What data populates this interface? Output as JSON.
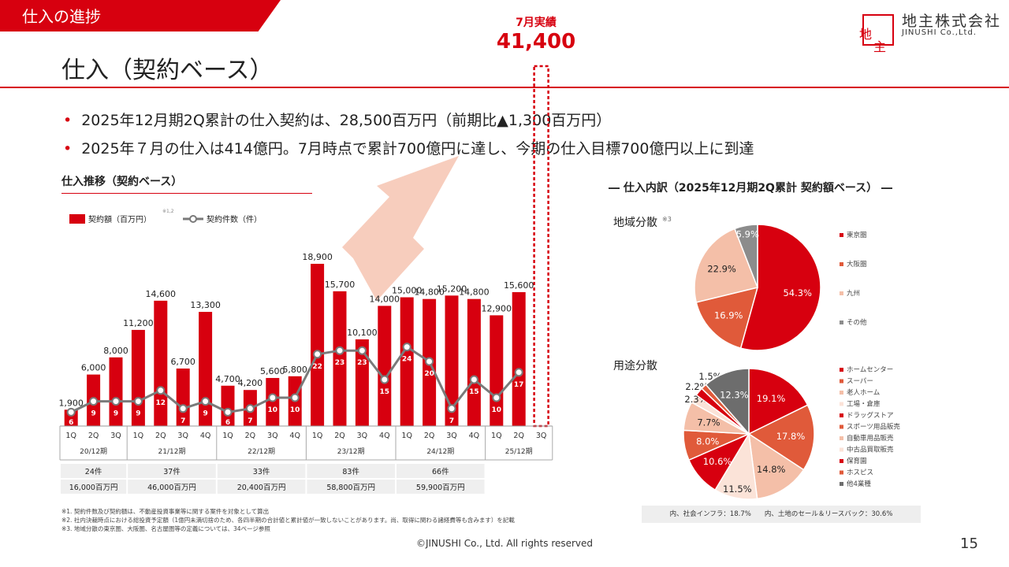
{
  "header": {
    "section": "仕入の進捗",
    "title": "仕入（契約ベース）",
    "logo_chars": [
      "地",
      "主"
    ],
    "company_name": "地主株式会社",
    "company_sub": "JINUSHI Co.,Ltd."
  },
  "highlight": {
    "label": "7月実績",
    "value": "41,400"
  },
  "bullets": [
    "2025年12月期2Q累計の仕入契約は、28,500百万円（前期比▲1,300百万円）",
    "2025年７月の仕入は414億円。7月時点で累計700億円に達し、今期の仕入目標700億円以上に到達"
  ],
  "left_chart_title": "仕入推移（契約ベース）",
  "right_title": "― 仕入内訳（2025年12月期2Q累計 契約額ベース） ―",
  "chart_data": [
    {
      "type": "bar",
      "legend": {
        "bar": "契約額（百万円）",
        "bar_note": "※1,2",
        "line": "契約件数（件）"
      },
      "categories": [
        "1Q",
        "2Q",
        "3Q",
        "1Q",
        "2Q",
        "3Q",
        "4Q",
        "1Q",
        "2Q",
        "3Q",
        "4Q",
        "1Q",
        "2Q",
        "3Q",
        "4Q",
        "1Q",
        "2Q",
        "3Q",
        "4Q",
        "1Q",
        "2Q",
        "3Q"
      ],
      "periods": [
        {
          "label": "20/12期",
          "count": 3
        },
        {
          "label": "21/12期",
          "count": 4
        },
        {
          "label": "22/12期",
          "count": 4
        },
        {
          "label": "23/12期",
          "count": 4
        },
        {
          "label": "24/12期",
          "count": 4
        },
        {
          "label": "25/12期",
          "count": 3
        }
      ],
      "series": [
        {
          "name": "契約額（百万円）",
          "type": "bar",
          "values": [
            1900,
            6000,
            8000,
            11200,
            14600,
            6700,
            13300,
            4700,
            4200,
            5600,
            5800,
            18900,
            15700,
            10100,
            14000,
            15000,
            14800,
            15200,
            14800,
            12900,
            15600,
            null
          ],
          "labels": [
            "1,900",
            "6,000",
            "8,000",
            "11,200",
            "14,600",
            "6,700",
            "13,300",
            "4,700",
            "4,200",
            "5,600",
            "5,800",
            "18,900",
            "15,700",
            "10,100",
            "14,000",
            "15,000",
            "14,800",
            "15,200",
            "14,800",
            "12,900",
            "15,600",
            ""
          ]
        },
        {
          "name": "契約件数（件）",
          "type": "line",
          "values": [
            6,
            9,
            9,
            9,
            12,
            7,
            9,
            6,
            7,
            10,
            10,
            22,
            23,
            23,
            15,
            24,
            20,
            7,
            15,
            10,
            17,
            null
          ]
        }
      ],
      "ylim": [
        0,
        20000
      ],
      "projection": {
        "category_index": 21,
        "value": 41400
      },
      "table": {
        "row1": [
          {
            "text": "24件",
            "span": 3
          },
          {
            "text": "37件",
            "span": 4
          },
          {
            "text": "33件",
            "span": 4
          },
          {
            "text": "83件",
            "span": 4
          },
          {
            "text": "66件",
            "span": 4
          }
        ],
        "row2": [
          {
            "text": "16,000百万円",
            "span": 3
          },
          {
            "text": "46,000百万円",
            "span": 4
          },
          {
            "text": "20,400百万円",
            "span": 4
          },
          {
            "text": "58,800百万円",
            "span": 4
          },
          {
            "text": "59,900百万円",
            "span": 4
          }
        ]
      }
    },
    {
      "type": "pie",
      "title": "地域分散",
      "title_note": "※3",
      "slices": [
        {
          "label": "東京圏",
          "value": 54.3,
          "display": "54.3%",
          "color": "#d7000f"
        },
        {
          "label": "大阪圏",
          "value": 16.9,
          "display": "16.9%",
          "color": "#e05a3a"
        },
        {
          "label": "九州",
          "value": 22.9,
          "display": "22.9%",
          "color": "#f4bfa8"
        },
        {
          "label": "その他",
          "value": 5.9,
          "display": "5.9%",
          "color": "#8c8c8c"
        }
      ]
    },
    {
      "type": "pie",
      "title": "用途分散",
      "slices": [
        {
          "label": "ホームセンター",
          "value": 19.1,
          "display": "19.1%",
          "color": "#d7000f"
        },
        {
          "label": "スーパー",
          "value": 17.8,
          "display": "17.8%",
          "color": "#e05a3a"
        },
        {
          "label": "老人ホーム",
          "value": 14.8,
          "display": "14.8%",
          "color": "#f4bfa8"
        },
        {
          "label": "工場・倉庫",
          "value": 11.5,
          "display": "11.5%",
          "color": "#fbe3d8"
        },
        {
          "label": "ドラッグストア",
          "value": 10.6,
          "display": "10.6%",
          "color": "#d7000f"
        },
        {
          "label": "スポーツ用品販売",
          "value": 8.0,
          "display": "8.0%",
          "color": "#e05a3a"
        },
        {
          "label": "自動車用品販売",
          "value": 7.7,
          "display": "7.7%",
          "color": "#f4bfa8"
        },
        {
          "label": "中古品買取販売",
          "value": 2.3,
          "display": "2.3%",
          "color": "#fbe3d8"
        },
        {
          "label": "保育園",
          "value": 2.2,
          "display": "2.2%",
          "color": "#d7000f"
        },
        {
          "label": "ホスピス",
          "value": 1.5,
          "display": "1.5%",
          "color": "#e05a3a"
        },
        {
          "label": "他4業種",
          "value": 12.3,
          "display": "12.3%",
          "color": "#6d6d6d"
        }
      ]
    }
  ],
  "pie_note": "内、社会インフラ：18.7%　　内、土地のセール＆リースバック：30.6%",
  "footnotes": [
    "※1. 契約件数及び契約額は、不動産投資事業等に関する案件を対象として算出",
    "※2. 社内決裁時点における総投資予定額（1億円未満切捨のため、各四半期の合計値と累計値が一致しないことがあります。尚、取得に関わる諸経費等も含みます）を記載",
    "※3. 地域分散の東京圏、大阪圏、名古屋圏等の定義については、34ページ参照"
  ],
  "copyright": "©JINUSHI Co., Ltd. All rights reserved",
  "page_number": "15"
}
